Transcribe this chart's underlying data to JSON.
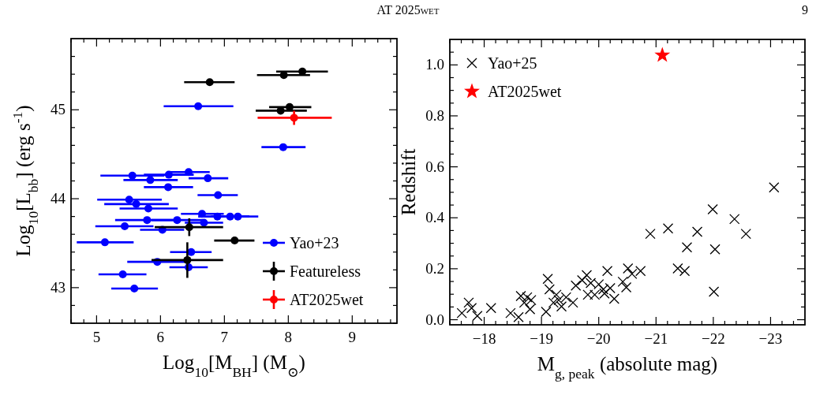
{
  "chart_data": [
    {
      "type": "scatter",
      "xlabel": "Log$_{10}$[M$_{BH}$] (M$_{⊙}$)",
      "ylabel": "Log$_{10}$[L$_{bb}$] (erg s$^{-1}$)",
      "annotations": [
        "AT 2025wet",
        "9"
      ],
      "xlim": [
        4.6,
        9.7
      ],
      "ylim": [
        42.6,
        45.8
      ],
      "xticks": [
        {
          "value": 4.6,
          "label": null
        },
        {
          "value": 4.8,
          "label": null
        },
        5,
        {
          "value": 5.2,
          "label": null
        },
        {
          "value": 5.4,
          "label": null
        },
        {
          "value": 5.6,
          "label": null
        },
        {
          "value": 5.8,
          "label": null
        },
        6,
        {
          "value": 6.2,
          "label": null
        },
        {
          "value": 6.4,
          "label": null
        },
        {
          "value": 6.6,
          "label": null
        },
        {
          "value": 6.8,
          "label": null
        },
        7,
        {
          "value": 7.2,
          "label": null
        },
        {
          "value": 7.4,
          "label": null
        },
        {
          "value": 7.6,
          "label": null
        },
        {
          "value": 7.8,
          "label": null
        },
        8,
        {
          "value": 8.2,
          "label": null
        },
        {
          "value": 8.4,
          "label": null
        },
        {
          "value": 8.6,
          "label": null
        },
        {
          "value": 8.8,
          "label": null
        },
        9,
        {
          "value": 9.2,
          "label": null
        },
        {
          "value": 9.4,
          "label": null
        },
        {
          "value": 9.6,
          "label": null
        }
      ],
      "yticks": [
        {
          "value": 42.6,
          "label": null
        },
        {
          "value": 42.8,
          "label": null
        },
        43,
        {
          "value": 43.2,
          "label": null
        },
        {
          "value": 43.4,
          "label": null
        },
        {
          "value": 43.6,
          "label": null
        },
        {
          "value": 43.8,
          "label": null
        },
        44,
        {
          "value": 44.2,
          "label": null
        },
        {
          "value": 44.4,
          "label": null
        },
        {
          "value": 44.6,
          "label": null
        },
        {
          "value": 44.8,
          "label": null
        },
        45,
        {
          "value": 45.2,
          "label": null
        },
        {
          "value": 45.4,
          "label": null
        },
        {
          "value": 45.6,
          "label": null
        }
      ],
      "legend": "bottom right",
      "series": [
        {
          "name": "Yao+23",
          "color": "#0000ff",
          "marker": "circle",
          "x": [
            6.59,
            7.92,
            5.56,
            6.13,
            6.44,
            5.84,
            6.74,
            6.12,
            6.9,
            5.51,
            5.62,
            5.81,
            6.65,
            6.89,
            7.09,
            7.21,
            5.79,
            6.26,
            6.68,
            5.44,
            6.03,
            5.13,
            6.48,
            5.95,
            6.44,
            5.41,
            5.59
          ],
          "values": [
            45.04,
            44.58,
            44.26,
            44.27,
            44.3,
            44.21,
            44.23,
            44.13,
            44.04,
            43.99,
            43.94,
            43.89,
            43.83,
            43.8,
            43.8,
            43.8,
            43.76,
            43.76,
            43.73,
            43.69,
            43.65,
            43.51,
            43.4,
            43.29,
            43.23,
            43.15,
            42.99
          ],
          "xerrors": [
            [
              6.05,
              7.14
            ],
            [
              7.58,
              8.27
            ],
            [
              5.06,
              6.06
            ],
            [
              5.74,
              6.52
            ],
            [
              6.11,
              6.77
            ],
            [
              5.42,
              6.27
            ],
            [
              6.44,
              7.06
            ],
            [
              5.74,
              6.51
            ],
            [
              6.58,
              7.21
            ],
            [
              5.01,
              6.02
            ],
            [
              5.12,
              6.13
            ],
            [
              5.36,
              6.27
            ],
            [
              6.32,
              6.99
            ],
            [
              6.59,
              7.19
            ],
            [
              6.79,
              7.39
            ],
            [
              7.21,
              7.53
            ],
            [
              5.29,
              6.29
            ],
            [
              5.86,
              6.66
            ],
            [
              6.38,
              6.98
            ],
            [
              4.98,
              5.89
            ],
            [
              5.68,
              6.37
            ],
            [
              4.69,
              5.58
            ],
            [
              6.15,
              6.8
            ],
            [
              5.48,
              6.42
            ],
            [
              6.14,
              6.74
            ],
            [
              5.03,
              5.78
            ],
            [
              5.23,
              5.96
            ]
          ]
        },
        {
          "name": "Featureless",
          "color": "#000000",
          "marker": "circle",
          "x": [
            6.77,
            7.93,
            8.22,
            8.02,
            7.88,
            6.45,
            7.16,
            6.42
          ],
          "values": [
            45.31,
            45.39,
            45.43,
            45.03,
            44.99,
            43.68,
            43.53,
            43.31
          ],
          "xerrors": [
            [
              6.37,
              7.16
            ],
            [
              7.51,
              8.34
            ],
            [
              7.81,
              8.62
            ],
            [
              7.7,
              8.36
            ],
            [
              7.49,
              8.29
            ],
            [
              5.91,
              6.98
            ],
            [
              6.84,
              7.47
            ],
            [
              5.86,
              6.98
            ]
          ],
          "errors": [
            null,
            null,
            null,
            null,
            null,
            [
              43.58,
              43.78
            ],
            null,
            [
              43.11,
              43.51
            ]
          ]
        },
        {
          "name": "AT2025wet",
          "color": "#ff0000",
          "marker": "circle",
          "x": [
            8.09
          ],
          "values": [
            44.91
          ],
          "xerrors": [
            [
              7.52,
              8.68
            ]
          ],
          "errors": [
            [
              44.83,
              44.99
            ]
          ]
        }
      ]
    },
    {
      "type": "scatter",
      "xlabel": "M$_{g, peak}$ (absolute mag)",
      "ylabel": "Redshift",
      "xlim": [
        -17.4,
        -23.6
      ],
      "ylim": [
        -0.02,
        1.1
      ],
      "xticks": [
        {
          "value": -17.4,
          "label": null
        },
        {
          "value": -17.6,
          "label": null
        },
        {
          "value": -17.8,
          "label": null
        },
        {
          "value": -18,
          "label": "−18"
        },
        {
          "value": -18.2,
          "label": null
        },
        {
          "value": -18.4,
          "label": null
        },
        {
          "value": -18.6,
          "label": null
        },
        {
          "value": -18.8,
          "label": null
        },
        {
          "value": -19,
          "label": "−19"
        },
        {
          "value": -19.2,
          "label": null
        },
        {
          "value": -19.4,
          "label": null
        },
        {
          "value": -19.6,
          "label": null
        },
        {
          "value": -19.8,
          "label": null
        },
        {
          "value": -20,
          "label": "−20"
        },
        {
          "value": -20.2,
          "label": null
        },
        {
          "value": -20.4,
          "label": null
        },
        {
          "value": -20.6,
          "label": null
        },
        {
          "value": -20.8,
          "label": null
        },
        {
          "value": -21,
          "label": "−21"
        },
        {
          "value": -21.2,
          "label": null
        },
        {
          "value": -21.4,
          "label": null
        },
        {
          "value": -21.6,
          "label": null
        },
        {
          "value": -21.8,
          "label": null
        },
        {
          "value": -22,
          "label": "−22"
        },
        {
          "value": -22.2,
          "label": null
        },
        {
          "value": -22.4,
          "label": null
        },
        {
          "value": -22.6,
          "label": null
        },
        {
          "value": -22.8,
          "label": null
        },
        {
          "value": -23,
          "label": "−23"
        },
        {
          "value": -23.2,
          "label": null
        },
        {
          "value": -23.4,
          "label": null
        }
      ],
      "yticks": [
        {
          "value": 0,
          "label": "0.0"
        },
        {
          "value": 0.05,
          "label": null
        },
        {
          "value": 0.1,
          "label": null
        },
        {
          "value": 0.15,
          "label": null
        },
        {
          "value": 0.2,
          "label": "0.2"
        },
        {
          "value": 0.25,
          "label": null
        },
        {
          "value": 0.3,
          "label": null
        },
        {
          "value": 0.35,
          "label": null
        },
        {
          "value": 0.4,
          "label": "0.4"
        },
        {
          "value": 0.45,
          "label": null
        },
        {
          "value": 0.5,
          "label": null
        },
        {
          "value": 0.55,
          "label": null
        },
        {
          "value": 0.6,
          "label": "0.6"
        },
        {
          "value": 0.65,
          "label": null
        },
        {
          "value": 0.7,
          "label": null
        },
        {
          "value": 0.75,
          "label": null
        },
        {
          "value": 0.8,
          "label": "0.8"
        },
        {
          "value": 0.85,
          "label": null
        },
        {
          "value": 0.9,
          "label": null
        },
        {
          "value": 0.95,
          "label": null
        },
        {
          "value": 1.0,
          "label": "1.0"
        },
        {
          "value": 1.05,
          "label": null
        }
      ],
      "legend": "top left",
      "series": [
        {
          "name": "Yao+25",
          "color": "#000000",
          "marker": "cross",
          "x": [
            -17.61,
            -17.73,
            -17.78,
            -17.88,
            -18.12,
            -18.46,
            -18.6,
            -18.64,
            -18.7,
            -18.75,
            -18.8,
            -18.82,
            -19.08,
            -19.11,
            -19.14,
            -19.21,
            -19.26,
            -19.3,
            -19.35,
            -19.43,
            -19.55,
            -19.6,
            -19.71,
            -19.79,
            -19.81,
            -19.86,
            -19.93,
            -20.0,
            -20.08,
            -20.1,
            -20.15,
            -20.2,
            -20.27,
            -20.42,
            -20.48,
            -20.51,
            -20.58,
            -20.73,
            -20.9,
            -21.21,
            -21.38,
            -21.5,
            -21.54,
            -21.72,
            -21.99,
            -22.01,
            -22.03,
            -22.37,
            -22.57,
            -23.06
          ],
          "values": [
            0.026,
            0.067,
            0.046,
            0.015,
            0.046,
            0.026,
            0.01,
            0.093,
            0.067,
            0.088,
            0.041,
            0.077,
            0.031,
            0.16,
            0.119,
            0.067,
            0.098,
            0.077,
            0.052,
            0.088,
            0.067,
            0.134,
            0.155,
            0.175,
            0.098,
            0.144,
            0.098,
            0.139,
            0.119,
            0.103,
            0.191,
            0.124,
            0.082,
            0.149,
            0.127,
            0.201,
            0.18,
            0.191,
            0.337,
            0.358,
            0.201,
            0.191,
            0.284,
            0.345,
            0.433,
            0.11,
            0.276,
            0.395,
            0.337,
            0.519
          ]
        },
        {
          "name": "AT2025wet",
          "color": "#ff0000",
          "marker": "star",
          "x": [
            -21.11
          ],
          "values": [
            1.038
          ]
        }
      ]
    }
  ]
}
